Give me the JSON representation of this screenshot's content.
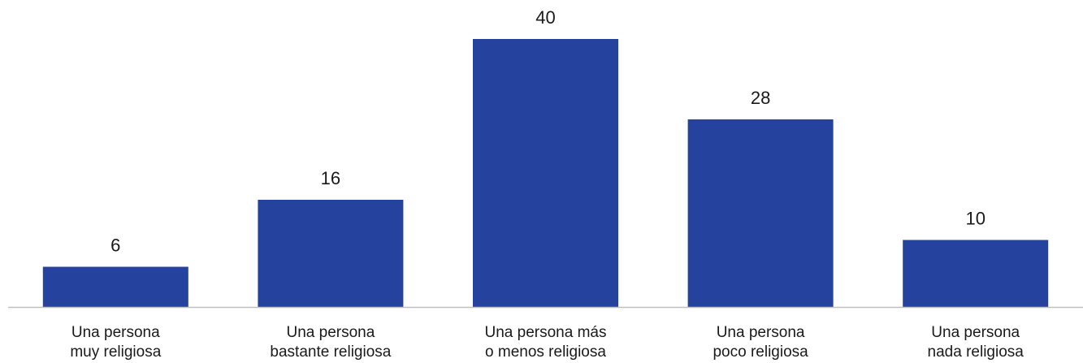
{
  "chart_data": {
    "type": "bar",
    "categories": [
      [
        "Una persona",
        "muy religiosa"
      ],
      [
        "Una persona",
        "bastante religiosa"
      ],
      [
        "Una persona más",
        "o menos religiosa"
      ],
      [
        "Una persona",
        "poco religiosa"
      ],
      [
        "Una persona",
        "nada religiosa"
      ]
    ],
    "values": [
      6,
      16,
      40,
      28,
      10
    ],
    "value_labels": [
      "6",
      "16",
      "40",
      "28",
      "10"
    ],
    "title": "",
    "xlabel": "",
    "ylabel": "",
    "ylim": [
      0,
      40
    ],
    "grid": false,
    "legend": "none",
    "bar_color": "#26429f",
    "axis_color": "#bfbfbf",
    "text_color": "#1a1a1a"
  }
}
